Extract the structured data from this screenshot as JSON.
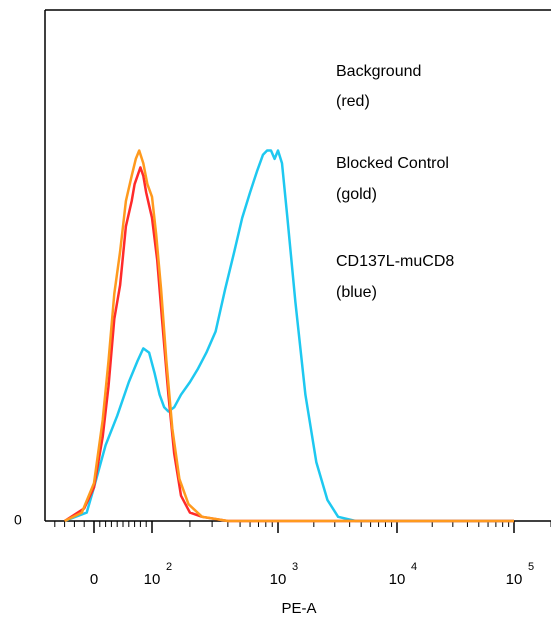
{
  "chart_data": {
    "type": "line",
    "title": "",
    "xlabel": "PE-A",
    "ylabel": "",
    "x_scale": "biexponential",
    "x_ticks": [
      {
        "value": 0,
        "label": "0"
      },
      {
        "value": 100,
        "label": "10",
        "exp": "2"
      },
      {
        "value": 1000,
        "label": "10",
        "exp": "3"
      },
      {
        "value": 10000,
        "label": "10",
        "exp": "4"
      },
      {
        "value": 100000,
        "label": "10",
        "exp": "5"
      }
    ],
    "y_ticks": [
      {
        "value": 0,
        "label": "0"
      }
    ],
    "legend": {
      "placement": "top-right",
      "entries": [
        {
          "name": "Background",
          "note": "(red)"
        },
        {
          "name": "Blocked Control",
          "note": "(gold)"
        },
        {
          "name": "CD137L-muCD8",
          "note": "(blue)"
        }
      ]
    },
    "series": [
      {
        "name": "Background",
        "color": "#ff2a2a",
        "points": [
          [
            -60,
            0
          ],
          [
            -20,
            3
          ],
          [
            0,
            8
          ],
          [
            15,
            20
          ],
          [
            25,
            32
          ],
          [
            35,
            48
          ],
          [
            45,
            56
          ],
          [
            55,
            70
          ],
          [
            65,
            76
          ],
          [
            70,
            80
          ],
          [
            75,
            82
          ],
          [
            80,
            84
          ],
          [
            85,
            82
          ],
          [
            90,
            78
          ],
          [
            95,
            75
          ],
          [
            100,
            72
          ],
          [
            110,
            62
          ],
          [
            120,
            48
          ],
          [
            135,
            30
          ],
          [
            150,
            16
          ],
          [
            170,
            6
          ],
          [
            200,
            2
          ],
          [
            250,
            1
          ],
          [
            400,
            0
          ],
          [
            1000,
            0
          ],
          [
            10000,
            0
          ],
          [
            100000,
            0
          ]
        ]
      },
      {
        "name": "Blocked Control",
        "color": "#ff9a1e",
        "points": [
          [
            -60,
            0
          ],
          [
            -25,
            2
          ],
          [
            0,
            9
          ],
          [
            15,
            24
          ],
          [
            25,
            38
          ],
          [
            35,
            54
          ],
          [
            45,
            64
          ],
          [
            55,
            76
          ],
          [
            65,
            82
          ],
          [
            72,
            86
          ],
          [
            78,
            88
          ],
          [
            85,
            85
          ],
          [
            92,
            80
          ],
          [
            100,
            77
          ],
          [
            108,
            68
          ],
          [
            118,
            55
          ],
          [
            130,
            38
          ],
          [
            145,
            22
          ],
          [
            165,
            10
          ],
          [
            195,
            4
          ],
          [
            250,
            1
          ],
          [
            400,
            0
          ],
          [
            1000,
            0
          ],
          [
            10000,
            0
          ],
          [
            100000,
            0
          ]
        ]
      },
      {
        "name": "CD137L-muCD8",
        "color": "#1ec8f0",
        "points": [
          [
            -60,
            0
          ],
          [
            -15,
            2
          ],
          [
            0,
            8
          ],
          [
            20,
            18
          ],
          [
            40,
            25
          ],
          [
            60,
            33
          ],
          [
            75,
            38
          ],
          [
            85,
            41
          ],
          [
            95,
            40
          ],
          [
            105,
            35
          ],
          [
            115,
            30
          ],
          [
            125,
            27
          ],
          [
            135,
            26
          ],
          [
            150,
            27
          ],
          [
            170,
            30
          ],
          [
            200,
            33
          ],
          [
            230,
            36
          ],
          [
            270,
            40
          ],
          [
            320,
            45
          ],
          [
            380,
            55
          ],
          [
            450,
            64
          ],
          [
            520,
            72
          ],
          [
            600,
            78
          ],
          [
            680,
            83
          ],
          [
            760,
            87
          ],
          [
            820,
            88
          ],
          [
            880,
            88
          ],
          [
            940,
            86
          ],
          [
            1000,
            88
          ],
          [
            1080,
            85
          ],
          [
            1200,
            72
          ],
          [
            1400,
            52
          ],
          [
            1700,
            30
          ],
          [
            2100,
            14
          ],
          [
            2600,
            5
          ],
          [
            3200,
            1
          ],
          [
            4500,
            0
          ],
          [
            10000,
            0
          ],
          [
            100000,
            0
          ]
        ]
      }
    ],
    "ylim": [
      0,
      100
    ]
  }
}
